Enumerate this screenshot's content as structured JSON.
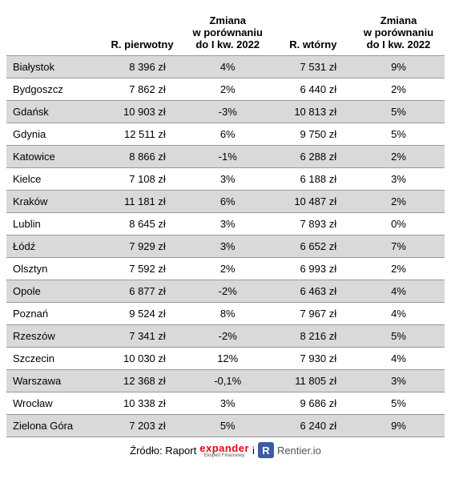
{
  "table": {
    "columns": [
      "",
      "R. pierwotny",
      "Zmiana\nw porównaniu\ndo I kw. 2022",
      "R. wtórny",
      "Zmiana\nw porównaniu\ndo I kw. 2022"
    ],
    "rows": [
      {
        "city": "Białystok",
        "primary": "8 396 zł",
        "primary_change": "4%",
        "secondary": "7 531 zł",
        "secondary_change": "9%"
      },
      {
        "city": "Bydgoszcz",
        "primary": "7 862 zł",
        "primary_change": "2%",
        "secondary": "6 440 zł",
        "secondary_change": "2%"
      },
      {
        "city": "Gdańsk",
        "primary": "10 903 zł",
        "primary_change": "-3%",
        "secondary": "10 813 zł",
        "secondary_change": "5%"
      },
      {
        "city": "Gdynia",
        "primary": "12 511 zł",
        "primary_change": "6%",
        "secondary": "9 750 zł",
        "secondary_change": "5%"
      },
      {
        "city": "Katowice",
        "primary": "8 866 zł",
        "primary_change": "-1%",
        "secondary": "6 288 zł",
        "secondary_change": "2%"
      },
      {
        "city": "Kielce",
        "primary": "7 108 zł",
        "primary_change": "3%",
        "secondary": "6 188 zł",
        "secondary_change": "3%"
      },
      {
        "city": "Kraków",
        "primary": "11 181 zł",
        "primary_change": "6%",
        "secondary": "10 487 zł",
        "secondary_change": "2%"
      },
      {
        "city": "Lublin",
        "primary": "8 645 zł",
        "primary_change": "3%",
        "secondary": "7 893 zł",
        "secondary_change": "0%"
      },
      {
        "city": "Łódź",
        "primary": "7 929 zł",
        "primary_change": "3%",
        "secondary": "6 652 zł",
        "secondary_change": "7%"
      },
      {
        "city": "Olsztyn",
        "primary": "7 592 zł",
        "primary_change": "2%",
        "secondary": "6 993 zł",
        "secondary_change": "2%"
      },
      {
        "city": "Opole",
        "primary": "6 877 zł",
        "primary_change": "-2%",
        "secondary": "6 463 zł",
        "secondary_change": "4%"
      },
      {
        "city": "Poznań",
        "primary": "9 524 zł",
        "primary_change": "8%",
        "secondary": "7 967 zł",
        "secondary_change": "4%"
      },
      {
        "city": "Rzeszów",
        "primary": "7 341 zł",
        "primary_change": "-2%",
        "secondary": "8 216 zł",
        "secondary_change": "5%"
      },
      {
        "city": "Szczecin",
        "primary": "10 030 zł",
        "primary_change": "12%",
        "secondary": "7 930 zł",
        "secondary_change": "4%"
      },
      {
        "city": "Warszawa",
        "primary": "12 368 zł",
        "primary_change": "-0,1%",
        "secondary": "11 805 zł",
        "secondary_change": "3%"
      },
      {
        "city": "Wrocław",
        "primary": "10 338 zł",
        "primary_change": "3%",
        "secondary": "9 686 zł",
        "secondary_change": "5%"
      },
      {
        "city": "Zielona Góra",
        "primary": "7 203 zł",
        "primary_change": "5%",
        "secondary": "6 240 zł",
        "secondary_change": "9%"
      }
    ],
    "header_bg": "#ffffff",
    "row_odd_bg": "#d9d9d9",
    "row_even_bg": "#ffffff",
    "border_color": "#999999",
    "font_size": 13
  },
  "footer": {
    "source_label": "Źródło: Raport",
    "brand1": "expander",
    "brand1_sub": "Ekspert Finansowy",
    "and": "i",
    "brand2_badge": "R",
    "brand2_text": "Rentier.io"
  },
  "colors": {
    "expander_red": "#e30613",
    "rentier_blue": "#3b5ba5",
    "text": "#000000"
  }
}
